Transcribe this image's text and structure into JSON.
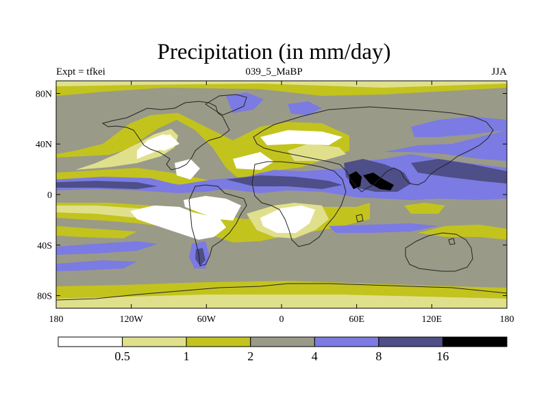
{
  "title": "Precipitation (in mm/day)",
  "subtitle_left": "Expt = tfkei",
  "subtitle_center": "039_5_MaBP",
  "subtitle_right": "JJA",
  "map": {
    "lon_range": [
      -180,
      180
    ],
    "lat_range": [
      -90,
      90
    ],
    "lon_ticks": [
      {
        "value": -180,
        "label": "180"
      },
      {
        "value": -120,
        "label": "120W"
      },
      {
        "value": -60,
        "label": "60W"
      },
      {
        "value": 0,
        "label": "0"
      },
      {
        "value": 60,
        "label": "60E"
      },
      {
        "value": 120,
        "label": "120E"
      },
      {
        "value": 180,
        "label": "180"
      }
    ],
    "lat_ticks": [
      {
        "value": 80,
        "label": "80N"
      },
      {
        "value": 40,
        "label": "40N"
      },
      {
        "value": 0,
        "label": "0"
      },
      {
        "value": -40,
        "label": "40S"
      },
      {
        "value": -80,
        "label": "80S"
      }
    ]
  },
  "colorbar": {
    "levels": [
      "0.5",
      "1",
      "2",
      "4",
      "8",
      "16"
    ],
    "colors": [
      "#ffffff",
      "#e0e08c",
      "#c3c31e",
      "#9a9a88",
      "#7b7be3",
      "#4e4e88",
      "#000000"
    ]
  }
}
